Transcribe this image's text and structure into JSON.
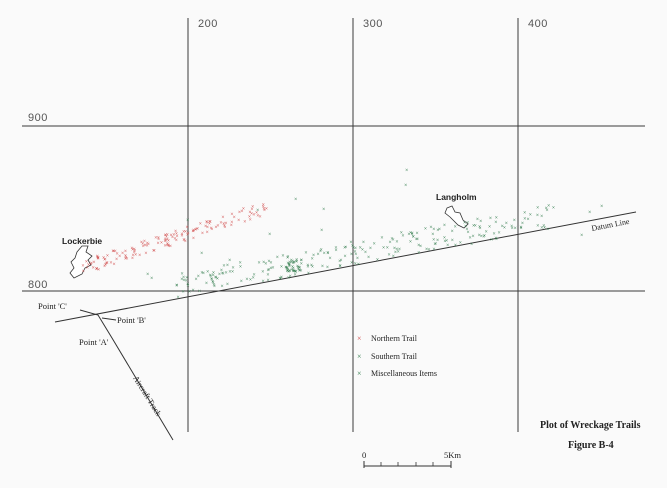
{
  "grid": {
    "x_labels": [
      "200",
      "300",
      "400"
    ],
    "y_labels": [
      "900",
      "800"
    ]
  },
  "places": {
    "lockerbie": "Lockerbie",
    "langholm": "Langholm"
  },
  "points": {
    "c": "Point 'C'",
    "b": "Point 'B'",
    "a": "Point 'A'"
  },
  "lines": {
    "aircraft_track": "Aircraft Track",
    "datum_line": "Datum Line"
  },
  "legend": {
    "items": [
      {
        "label": "Northern Trail",
        "color": "#d04848"
      },
      {
        "label": "Southern Trail",
        "color": "#2f7a4a"
      },
      {
        "label": "Miscellaneous Items",
        "color": "#2f7a4a"
      }
    ]
  },
  "scale": {
    "start_label": "0",
    "end_label": "5Km"
  },
  "titles": {
    "title": "Plot of Wreckage Trails",
    "figure": "Figure B-4"
  },
  "colors": {
    "northern": "#d04848",
    "southern": "#2f7a4a",
    "grid": "#3a3a3a"
  }
}
